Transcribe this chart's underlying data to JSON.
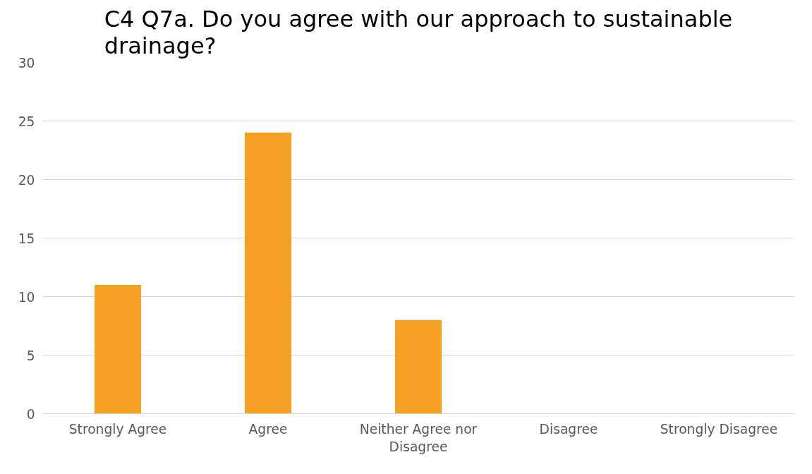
{
  "chart_data": {
    "type": "bar",
    "title": "C4 Q7a. Do you agree with our approach to sustainable drainage?",
    "categories": [
      "Strongly Agree",
      "Agree",
      "Neither Agree nor Disagree",
      "Disagree",
      "Strongly Disagree"
    ],
    "values": [
      11,
      24,
      8,
      0,
      0
    ],
    "color": "#f5a023",
    "ylim": [
      0,
      30
    ],
    "yticks": [
      0,
      5,
      10,
      15,
      20,
      25,
      30
    ],
    "grid": "y"
  }
}
